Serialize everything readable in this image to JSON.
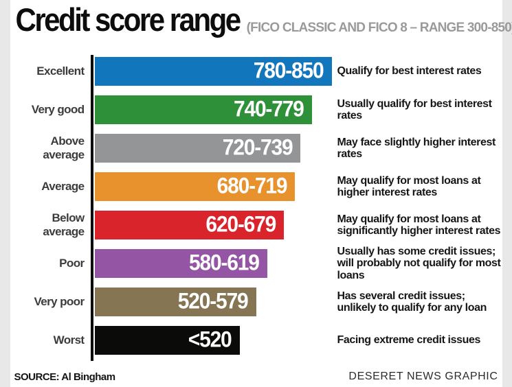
{
  "header": {
    "title": "Credit score range",
    "subtitle": "(FICO CLASSIC AND FICO 8 – RANGE 300-850)"
  },
  "footer": {
    "source": "SOURCE: Al Bingham",
    "credit": "DESERET NEWS GRAPHIC"
  },
  "chart_data": {
    "type": "bar",
    "orientation": "horizontal",
    "title": "Credit score range",
    "subtitle": "(FICO CLASSIC AND FICO 8 – RANGE 300-850)",
    "xlim": [
      0,
      850
    ],
    "grid": false,
    "legend": false,
    "categories": [
      "Excellent",
      "Very good",
      "Above average",
      "Average",
      "Below average",
      "Poor",
      "Very poor",
      "Worst"
    ],
    "range_labels": [
      "780-850",
      "740-779",
      "720-739",
      "680-719",
      "620-679",
      "580-619",
      "520-579",
      "<520"
    ],
    "bar_values": [
      850,
      779,
      739,
      719,
      679,
      619,
      579,
      520
    ],
    "bar_scale_max": 850,
    "colors": [
      "#1276bc",
      "#2e9139",
      "#939597",
      "#e8922e",
      "#d9242b",
      "#9455a4",
      "#857552",
      "#0b0b09"
    ],
    "descriptions": [
      [
        "Qualify for best interest rates"
      ],
      [
        "Usually qualify for best interest rates"
      ],
      [
        "May face slightly higher interest rates"
      ],
      [
        "May qualify for most loans at",
        "higher interest rates"
      ],
      [
        "May qualify for most loans at",
        "significantly higher interest rates"
      ],
      [
        "Usually has some credit issues;",
        "will probably not qualify for most loans"
      ],
      [
        "Has several credit issues;",
        "unlikely to qualify for any loan"
      ],
      [
        "Facing extreme credit issues"
      ]
    ]
  }
}
